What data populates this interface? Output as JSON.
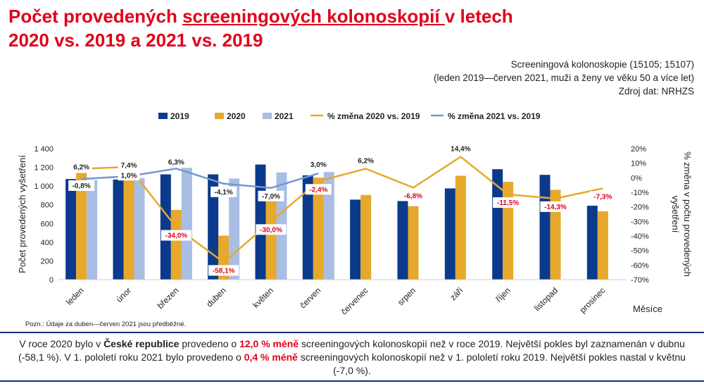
{
  "title": {
    "part1": "Počet provedených ",
    "part2": "screeningových kolonoskopií ",
    "part3": "v letech",
    "line2": "2020 vs. 2019 a 2021 vs. 2019"
  },
  "meta": {
    "line1": "Screeningová kolonoskopie (15105; 15107)",
    "line2": "(leden 2019—červen 2021, muži a ženy ve věku 50 a více let)",
    "line3": "Zdroj dat: NRHZS"
  },
  "footnote": "Pozn.: Údaje za duben—červen 2021 jsou předběžné.",
  "summary": {
    "s1": "V roce 2020 bylo v ",
    "s2": "České republice",
    "s3": " provedeno o ",
    "s4": "12,0 % méně",
    "s5": " screeningových kolonoskopií než v roce 2019. Největší pokles byl zaznamenán v dubnu (-58,1 %). V 1. pololetí roku 2021 bylo provedeno o ",
    "s6": "0,4 % méně",
    "s7": " screeningových kolonoskopií než v 1. pololetí roku 2019. Největší pokles nastal v květnu (-7,0 %)."
  },
  "colors": {
    "title": "#e2001a",
    "s2019": "#0b3a8c",
    "s2020": "#e6a92b",
    "s2021": "#aabde3",
    "line2020": "#e6a92b",
    "line2021": "#7397cf",
    "divider": "#0c2e8a"
  },
  "chart_data": {
    "type": "bar",
    "categories": [
      "leden",
      "únor",
      "březen",
      "duben",
      "květen",
      "červen",
      "červenec",
      "srpen",
      "září",
      "říjen",
      "listopad",
      "prosinec"
    ],
    "series": [
      {
        "name": "2019",
        "values": [
          1075,
          1070,
          1125,
          1125,
          1230,
          1115,
          855,
          840,
          975,
          1180,
          1120,
          790
        ]
      },
      {
        "name": "2020",
        "values": [
          1140,
          1150,
          745,
          470,
          865,
          1090,
          905,
          785,
          1110,
          1045,
          960,
          730
        ]
      },
      {
        "name": "2021",
        "values": [
          1065,
          1085,
          1195,
          1080,
          1145,
          1150,
          null,
          null,
          null,
          null,
          null,
          null
        ]
      }
    ],
    "lines": [
      {
        "name": "% změna 2020 vs. 2019",
        "values": [
          6.2,
          7.4,
          -34.0,
          -58.1,
          -30.0,
          -2.4,
          6.2,
          -6.8,
          14.4,
          -11.5,
          -14.3,
          -7.3
        ],
        "labels": [
          "6,2%",
          "7,4%",
          "-34,0%",
          "-58,1%",
          "-30,0%",
          "-2,4%",
          "6,2%",
          "-6,8%",
          "14,4%",
          "-11,5%",
          "-14,3%",
          "-7,3%"
        ]
      },
      {
        "name": "% změna 2021 vs. 2019",
        "values": [
          -0.8,
          1.0,
          6.3,
          -4.1,
          -7.0,
          3.0,
          null,
          null,
          null,
          null,
          null,
          null
        ],
        "labels": [
          "-0,8%",
          "1,0%",
          "6,3%",
          "-4,1%",
          "-7,0%",
          "3,0%",
          null,
          null,
          null,
          null,
          null,
          null
        ]
      }
    ],
    "ylabel": "Počet provedených vyšetření",
    "y2label": "% změna v počtu provedených vyšetření",
    "xlabel": "Měsíce",
    "ylim": [
      0,
      1400
    ],
    "yticks": [
      "0",
      "200",
      "400",
      "600",
      "800",
      "1 000",
      "1 200",
      "1 400"
    ],
    "y2lim": [
      -70,
      20
    ],
    "y2ticks": [
      "-70%",
      "-60%",
      "-50%",
      "-40%",
      "-30%",
      "-20%",
      "-10%",
      "0%",
      "10%",
      "20%"
    ],
    "legend": [
      "2019",
      "2020",
      "2021",
      "% změna 2020 vs. 2019",
      "% změna 2021 vs. 2019"
    ],
    "legend_position": "top"
  }
}
